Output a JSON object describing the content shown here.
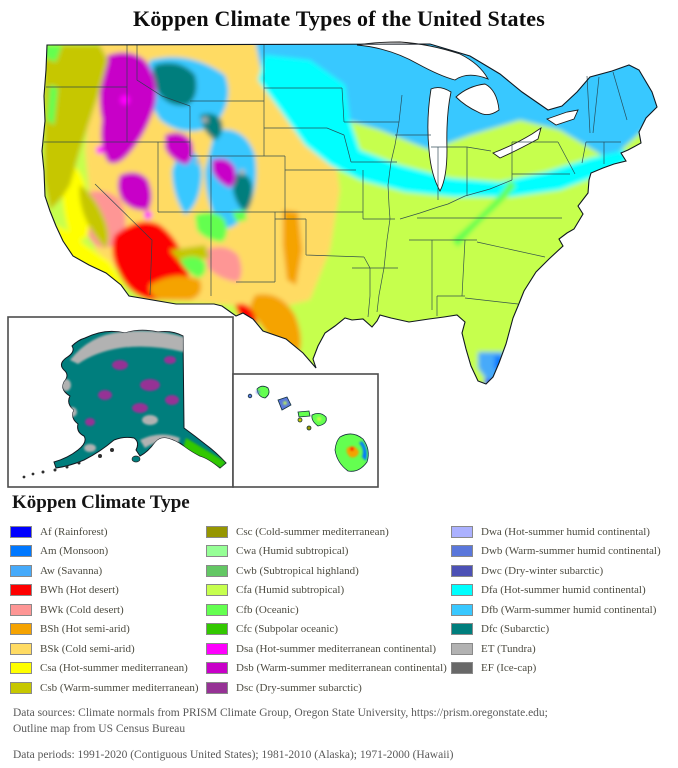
{
  "title": "Köppen Climate Types of the United States",
  "legend": {
    "heading": "Köppen Climate Type",
    "columns": [
      {
        "items": [
          {
            "code": "Af",
            "label": "Af (Rainforest)",
            "color": "#0000FE"
          },
          {
            "code": "Am",
            "label": "Am (Monsoon)",
            "color": "#0078FF"
          },
          {
            "code": "Aw",
            "label": "Aw (Savanna)",
            "color": "#46AAFA"
          },
          {
            "code": "BWh",
            "label": "BWh (Hot desert)",
            "color": "#FE0000"
          },
          {
            "code": "BWk",
            "label": "BWk (Cold desert)",
            "color": "#FE9695"
          },
          {
            "code": "BSh",
            "label": "BSh (Hot semi-arid)",
            "color": "#F5A301"
          },
          {
            "code": "BSk",
            "label": "BSk (Cold semi-arid)",
            "color": "#FFDB63"
          },
          {
            "code": "Csa",
            "label": "Csa (Hot-summer mediterranean)",
            "color": "#FFFF00"
          },
          {
            "code": "Csb",
            "label": "Csb (Warm-summer mediterranean)",
            "color": "#C6C700"
          }
        ]
      },
      {
        "items": [
          {
            "code": "Csc",
            "label": "Csc (Cold-summer mediterranean)",
            "color": "#969600"
          },
          {
            "code": "Cwa",
            "label": "Cwa (Humid subtropical)",
            "color": "#96FF96"
          },
          {
            "code": "Cwb",
            "label": "Cwb (Subtropical highland)",
            "color": "#63C764"
          },
          {
            "code": "Cfa",
            "label": "Cfa (Humid subtropical)",
            "color": "#C6FF4E"
          },
          {
            "code": "Cfb",
            "label": "Cfb (Oceanic)",
            "color": "#64FF50"
          },
          {
            "code": "Cfc",
            "label": "Cfc (Subpolar oceanic)",
            "color": "#32C800"
          },
          {
            "code": "Dsa",
            "label": "Dsa (Hot-summer mediterranean continental)",
            "color": "#FF00FE"
          },
          {
            "code": "Dsb",
            "label": "Dsb (Warm-summer mediterranean continental)",
            "color": "#C800C8"
          },
          {
            "code": "Dsc",
            "label": "Dsc (Dry-summer subarctic)",
            "color": "#963295"
          }
        ]
      },
      {
        "items": [
          {
            "code": "Dwa",
            "label": "Dwa (Hot-summer humid continental)",
            "color": "#ABB1FF"
          },
          {
            "code": "Dwb",
            "label": "Dwb (Warm-summer humid continental)",
            "color": "#5A77DB"
          },
          {
            "code": "Dwc",
            "label": "Dwc (Dry-winter subarctic)",
            "color": "#4C51B5"
          },
          {
            "code": "Dfa",
            "label": "Dfa (Hot-summer humid continental)",
            "color": "#00FFFF"
          },
          {
            "code": "Dfb",
            "label": "Dfb (Warm-summer humid continental)",
            "color": "#38C8FF"
          },
          {
            "code": "Dfc",
            "label": "Dfc (Subarctic)",
            "color": "#007E7D"
          },
          {
            "code": "ET",
            "label": "ET (Tundra)",
            "color": "#B2B2B2"
          },
          {
            "code": "EF",
            "label": "EF (Ice-cap)",
            "color": "#686868"
          }
        ]
      }
    ]
  },
  "footer": {
    "sources_line1": "Data sources: Climate normals from PRISM Climate Group, Oregon State University, https://prism.oregonstate.edu;",
    "sources_line2": "Outline map from US Census Bureau",
    "periods": "Data periods: 1991-2020 (Contiguous United States); 1981-2010 (Alaska); 1971-2000 (Hawaii)"
  }
}
